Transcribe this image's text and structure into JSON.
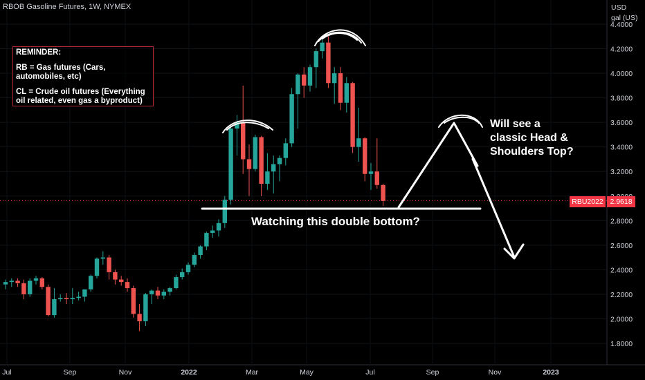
{
  "header": {
    "title": "RBOB Gasoline Futures, 1W, NYMEX"
  },
  "price_scale": {
    "unit_line1": "USD",
    "unit_line2": "gal (US)"
  },
  "last_price": {
    "symbol": "RBU2022",
    "value": "2.9618",
    "color": "#f23645"
  },
  "reminder": {
    "heading": "REMINDER:",
    "line_rb": "RB = Gas futures (Cars, automobiles, etc)",
    "line_cl": "CL = Crude oil futures (Everything oil related, even gas a byproduct)"
  },
  "annotations": {
    "double_bottom": "Watching this double bottom?",
    "head_shoulders": "Will see a\nclassic Head &\nShoulders Top?"
  },
  "colors": {
    "up": "#26a69a",
    "down": "#ef5350",
    "background": "#000000",
    "drawing": "#ffffff"
  },
  "chart_data": {
    "type": "candlestick",
    "title": "RBOB Gasoline Futures, 1W, NYMEX",
    "ylabel": "USD gal (US)",
    "ylim": [
      1.7,
      4.5
    ],
    "y_ticks": [
      "1.8000",
      "2.0000",
      "2.2000",
      "2.4000",
      "2.6000",
      "2.8000",
      "3.0000",
      "3.2000",
      "3.4000",
      "3.6000",
      "3.8000",
      "4.0000",
      "4.2000",
      "4.4000"
    ],
    "x_ticks": [
      "Jul",
      "Sep",
      "Nov",
      "2022",
      "Mar",
      "May",
      "Jul",
      "Sep",
      "Nov",
      "2023"
    ],
    "support_level": 2.9,
    "ohlc": [
      [
        2.28,
        2.32,
        2.24,
        2.3
      ],
      [
        2.3,
        2.33,
        2.26,
        2.31
      ],
      [
        2.31,
        2.33,
        2.26,
        2.29
      ],
      [
        2.29,
        2.32,
        2.16,
        2.2
      ],
      [
        2.2,
        2.33,
        2.18,
        2.31
      ],
      [
        2.31,
        2.35,
        2.28,
        2.33
      ],
      [
        2.33,
        2.34,
        2.24,
        2.26
      ],
      [
        2.26,
        2.28,
        2.02,
        2.03
      ],
      [
        2.03,
        2.25,
        2.01,
        2.16
      ],
      [
        2.16,
        2.2,
        2.14,
        2.17
      ],
      [
        2.17,
        2.21,
        2.12,
        2.16
      ],
      [
        2.16,
        2.25,
        2.12,
        2.17
      ],
      [
        2.17,
        2.22,
        2.15,
        2.18
      ],
      [
        2.18,
        2.24,
        2.14,
        2.24
      ],
      [
        2.24,
        2.36,
        2.22,
        2.35
      ],
      [
        2.35,
        2.5,
        2.33,
        2.49
      ],
      [
        2.49,
        2.55,
        2.44,
        2.5
      ],
      [
        2.5,
        2.52,
        2.32,
        2.38
      ],
      [
        2.38,
        2.4,
        2.28,
        2.32
      ],
      [
        2.32,
        2.35,
        2.27,
        2.3
      ],
      [
        2.3,
        2.33,
        2.22,
        2.25
      ],
      [
        2.25,
        2.27,
        2.01,
        2.04
      ],
      [
        2.04,
        2.12,
        1.9,
        1.98
      ],
      [
        1.98,
        2.21,
        1.94,
        2.2
      ],
      [
        2.2,
        2.24,
        2.12,
        2.23
      ],
      [
        2.23,
        2.26,
        2.16,
        2.19
      ],
      [
        2.19,
        2.24,
        2.16,
        2.22
      ],
      [
        2.22,
        2.26,
        2.19,
        2.25
      ],
      [
        2.25,
        2.36,
        2.24,
        2.34
      ],
      [
        2.34,
        2.41,
        2.32,
        2.38
      ],
      [
        2.38,
        2.46,
        2.36,
        2.44
      ],
      [
        2.44,
        2.54,
        2.42,
        2.52
      ],
      [
        2.52,
        2.6,
        2.49,
        2.59
      ],
      [
        2.59,
        2.71,
        2.56,
        2.7
      ],
      [
        2.7,
        2.76,
        2.66,
        2.72
      ],
      [
        2.72,
        2.81,
        2.67,
        2.78
      ],
      [
        2.78,
        3.0,
        2.74,
        2.97
      ],
      [
        2.97,
        3.56,
        2.93,
        3.55
      ],
      [
        3.55,
        3.66,
        3.33,
        3.6
      ],
      [
        3.6,
        3.9,
        3.18,
        3.3
      ],
      [
        3.3,
        3.42,
        3.0,
        3.22
      ],
      [
        3.22,
        3.5,
        3.2,
        3.48
      ],
      [
        3.48,
        3.49,
        3.0,
        3.1
      ],
      [
        3.1,
        3.35,
        3.05,
        3.2
      ],
      [
        3.2,
        3.33,
        3.02,
        3.26
      ],
      [
        3.26,
        3.33,
        3.12,
        3.31
      ],
      [
        3.31,
        3.47,
        3.25,
        3.43
      ],
      [
        3.43,
        3.88,
        3.4,
        3.83
      ],
      [
        3.83,
        4.0,
        3.55,
        3.99
      ],
      [
        3.99,
        4.05,
        3.8,
        3.9
      ],
      [
        3.9,
        4.07,
        3.85,
        4.05
      ],
      [
        4.05,
        4.2,
        3.88,
        4.18
      ],
      [
        4.18,
        4.3,
        4.12,
        4.25
      ],
      [
        4.25,
        4.3,
        3.88,
        3.92
      ],
      [
        3.92,
        4.05,
        3.75,
        4.0
      ],
      [
        4.0,
        4.05,
        3.7,
        3.76
      ],
      [
        3.76,
        3.97,
        3.68,
        3.92
      ],
      [
        3.92,
        3.93,
        3.35,
        3.4
      ],
      [
        3.4,
        3.72,
        3.28,
        3.47
      ],
      [
        3.47,
        3.48,
        3.12,
        3.18
      ],
      [
        3.18,
        3.27,
        3.05,
        3.2
      ],
      [
        3.2,
        3.47,
        3.06,
        3.09
      ],
      [
        3.09,
        3.1,
        2.92,
        2.96
      ]
    ]
  }
}
